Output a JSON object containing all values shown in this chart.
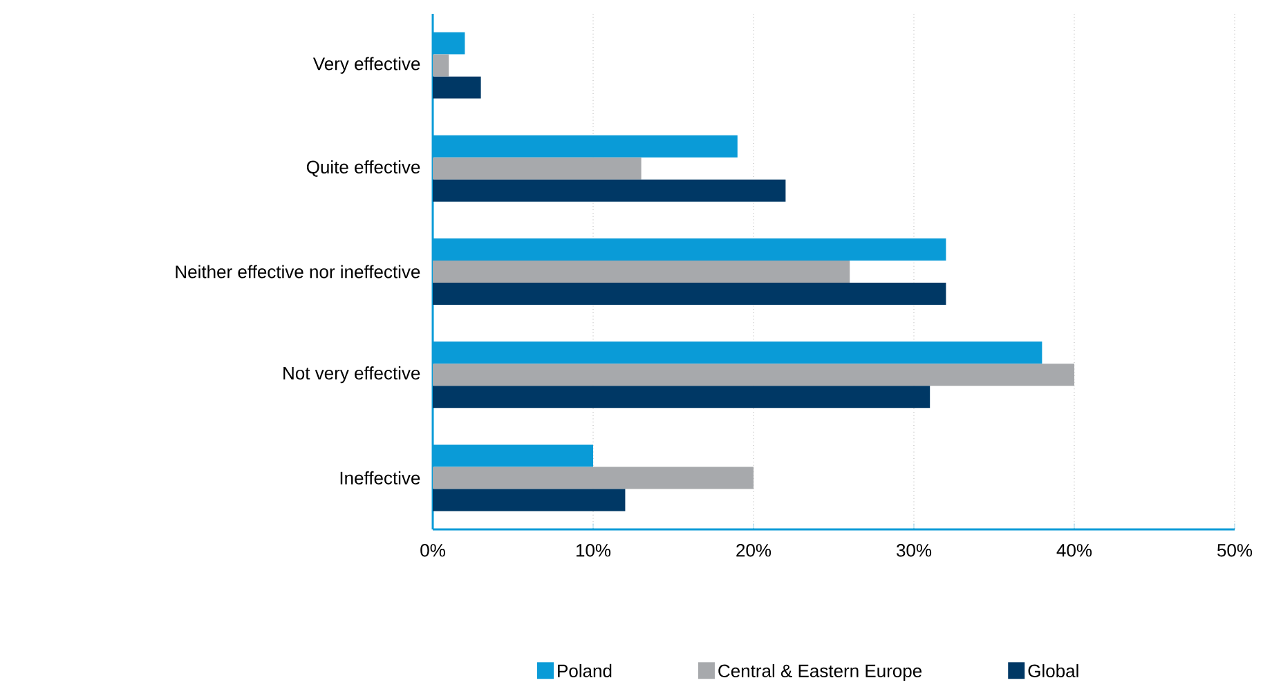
{
  "chart_data": {
    "type": "bar",
    "orientation": "horizontal",
    "categories": [
      "Very effective",
      "Quite effective",
      "Neither effective nor ineffective",
      "Not very effective",
      "Ineffective"
    ],
    "series": [
      {
        "name": "Poland",
        "color": "#0a9bd7",
        "values": [
          2,
          19,
          32,
          38,
          10
        ]
      },
      {
        "name": "Central & Eastern Europe",
        "color": "#a7a9ac",
        "values": [
          1,
          13,
          26,
          40,
          20
        ]
      },
      {
        "name": "Global",
        "color": "#003865",
        "values": [
          3,
          22,
          32,
          31,
          12
        ]
      }
    ],
    "xlim": [
      0,
      50
    ],
    "xticks": [
      {
        "value": 0,
        "label": "0%"
      },
      {
        "value": 10,
        "label": "10%"
      },
      {
        "value": 20,
        "label": "20%"
      },
      {
        "value": 30,
        "label": "30%"
      },
      {
        "value": 40,
        "label": "40%"
      },
      {
        "value": 50,
        "label": "50%"
      }
    ],
    "grid": "x",
    "legend": "bottom"
  }
}
